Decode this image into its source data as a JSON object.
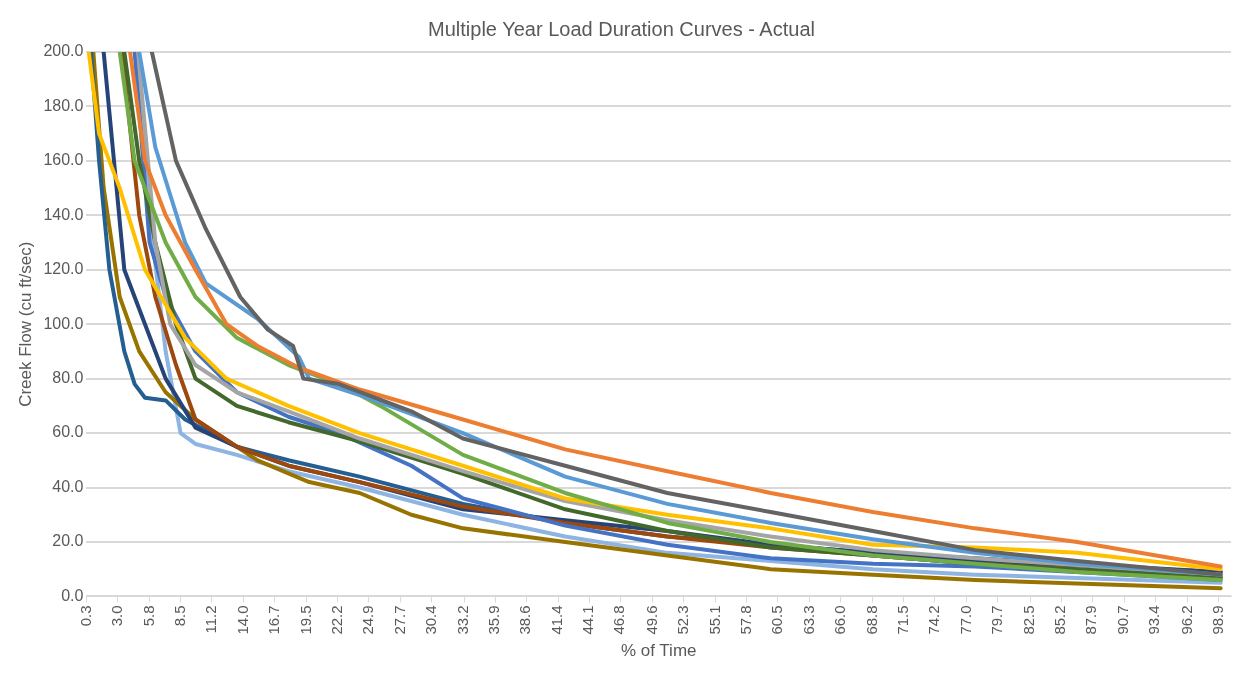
{
  "chart_data": {
    "type": "line",
    "title": "Multiple Year Load Duration Curves - Actual",
    "xlabel": "% of Time",
    "ylabel": "Creek Flow (cu ft/sec)",
    "xlim": [
      0.3,
      100
    ],
    "xticks": [
      0.3,
      {
        "value": 3,
        "label": "3.0"
      },
      5.8,
      8.5,
      11.2,
      {
        "value": 14,
        "label": "14.0"
      },
      16.7,
      19.5,
      22.2,
      24.9,
      27.7,
      30.4,
      33.2,
      35.9,
      38.6,
      41.4,
      44.1,
      46.8,
      49.6,
      52.3,
      55.1,
      57.8,
      60.5,
      63.3,
      {
        "value": 66,
        "label": "66.0"
      },
      68.8,
      71.5,
      74.2,
      {
        "value": 77,
        "label": "77.0"
      },
      79.7,
      82.5,
      85.2,
      87.9,
      90.7,
      93.4,
      96.2,
      98.9
    ],
    "ylim": [
      0,
      200
    ],
    "yticks": [
      {
        "value": 0,
        "label": "0.0"
      },
      {
        "value": 20,
        "label": "20.0"
      },
      {
        "value": 40,
        "label": "40.0"
      },
      {
        "value": 60,
        "label": "60.0"
      },
      {
        "value": 80,
        "label": "80.0"
      },
      {
        "value": 100,
        "label": "100.0"
      },
      {
        "value": 120,
        "label": "120.0"
      },
      {
        "value": 140,
        "label": "140.0"
      },
      {
        "value": 160,
        "label": "160.0"
      },
      {
        "value": 180,
        "label": "180.0"
      },
      {
        "value": 200,
        "label": "200.0"
      }
    ],
    "grid": "y",
    "legend": false,
    "marker": "none",
    "line_style": "solid",
    "series": [
      {
        "color": "#636363",
        "x": [
          6.0,
          8.1,
          10.7,
          13.7,
          16.1,
          18.3,
          19.2,
          22.3,
          28.6,
          33.1,
          42,
          50.9,
          59.9,
          68.8,
          77.7,
          86.6,
          99.1
        ],
        "values": [
          200,
          160,
          135,
          110,
          98,
          92,
          80,
          78,
          68,
          58,
          48,
          38,
          31,
          24,
          17,
          13,
          8
        ]
      },
      {
        "color": "#ed7d31",
        "x": [
          4.1,
          5.4,
          7.2,
          9.8,
          12.5,
          15.2,
          18.8,
          24.1,
          33.1,
          42,
          50.9,
          59.9,
          68.8,
          77.7,
          86.6,
          99.1
        ],
        "values": [
          200,
          160,
          140,
          120,
          100,
          92,
          84,
          76,
          65,
          54,
          46,
          38,
          31,
          25,
          20,
          11
        ]
      },
      {
        "color": "#5b9bd5",
        "x": [
          4.9,
          6.3,
          8.9,
          10.7,
          15.2,
          18.8,
          19.7,
          24.1,
          33.1,
          42,
          50.9,
          59.9,
          68.8,
          77.7,
          86.6,
          99.1
        ],
        "values": [
          200,
          165,
          130,
          115,
          102,
          88,
          80,
          74,
          60,
          44,
          34,
          27,
          21,
          16,
          12,
          8
        ]
      },
      {
        "color": "#70ad47",
        "x": [
          3.2,
          4.5,
          7.2,
          9.8,
          13.4,
          17.9,
          22.3,
          25.9,
          33.1,
          42,
          50.9,
          59.9,
          68.8,
          77.7,
          86.6,
          99.1
        ],
        "values": [
          200,
          160,
          130,
          110,
          95,
          85,
          78,
          70,
          52,
          38,
          27,
          20,
          15,
          12,
          9,
          6
        ]
      },
      {
        "color": "#ffc000",
        "x": [
          0.5,
          1.4,
          3.2,
          5.4,
          8.9,
          12.5,
          17.9,
          24.1,
          33.1,
          42,
          50.9,
          59.9,
          68.8,
          77.7,
          86.6,
          99.1
        ],
        "values": [
          200,
          170,
          150,
          120,
          95,
          80,
          70,
          60,
          48,
          36,
          30,
          25,
          19,
          18,
          16,
          10
        ]
      },
      {
        "color": "#a5a5a5",
        "x": [
          4.8,
          6.3,
          7.6,
          9.8,
          13.4,
          17.9,
          24.1,
          33.1,
          42,
          50.9,
          59.9,
          68.8,
          77.7,
          99.1
        ],
        "values": [
          200,
          130,
          100,
          85,
          75,
          68,
          58,
          46,
          35,
          28,
          22,
          17,
          14,
          8
        ]
      },
      {
        "color": "#43682b",
        "x": [
          3.6,
          4.9,
          6.3,
          8.1,
          9.8,
          13.4,
          17.9,
          24.1,
          33.1,
          42,
          50.9,
          59.9,
          68.8,
          77.7,
          99.1
        ],
        "values": [
          200,
          160,
          130,
          100,
          80,
          70,
          64,
          57,
          45,
          32,
          24,
          18,
          15,
          12,
          7
        ]
      },
      {
        "color": "#4472c4",
        "x": [
          4.5,
          5.8,
          7.2,
          9.8,
          13.4,
          17.9,
          22.3,
          28.6,
          33.1,
          42,
          50.9,
          59.9,
          68.8,
          77.7,
          99.1
        ],
        "values": [
          200,
          130,
          110,
          90,
          75,
          66,
          60,
          48,
          36,
          26,
          19,
          14,
          12,
          11,
          6
        ]
      },
      {
        "color": "#9e480e",
        "x": [
          3.4,
          4.9,
          6.3,
          8.1,
          9.8,
          13.4,
          17.9,
          24.1,
          33.1,
          42,
          50.9,
          59.9,
          68.8,
          77.7,
          99.1
        ],
        "values": [
          200,
          140,
          110,
          85,
          65,
          55,
          48,
          42,
          33,
          27,
          22,
          18,
          15,
          12,
          7
        ]
      },
      {
        "color": "#264478",
        "x": [
          1.8,
          2.7,
          3.6,
          5.4,
          7.2,
          9.8,
          13.4,
          17.9,
          24.1,
          33.1,
          42,
          50.9,
          59.9,
          68.8,
          77.7,
          99.1
        ],
        "values": [
          200,
          160,
          120,
          100,
          80,
          62,
          55,
          48,
          42,
          32,
          28,
          24,
          19,
          16,
          13,
          9
        ]
      },
      {
        "color": "#255e91",
        "x": [
          0.7,
          1.4,
          2.3,
          3.6,
          4.5,
          5.4,
          7.2,
          8.9,
          13.4,
          17.9,
          24.1,
          33.1,
          42,
          50.9,
          59.9,
          68.8,
          77.7,
          99.1
        ],
        "values": [
          200,
          160,
          120,
          90,
          78,
          73,
          72,
          65,
          55,
          50,
          44,
          34,
          27,
          22,
          19,
          16,
          14,
          9
        ]
      },
      {
        "color": "#997300",
        "x": [
          0.9,
          1.8,
          3.2,
          4.9,
          7.2,
          9.8,
          15.2,
          19.7,
          24.1,
          28.6,
          33.1,
          42,
          50.9,
          59.9,
          68.8,
          77.7,
          99.1
        ],
        "values": [
          200,
          150,
          110,
          90,
          75,
          65,
          50,
          42,
          38,
          30,
          25,
          20,
          15,
          10,
          8,
          6,
          3
        ]
      },
      {
        "color": "#8db4e2",
        "x": [
          4.8,
          5.8,
          7.2,
          8.5,
          9.8,
          13.4,
          17.9,
          24.1,
          33.1,
          42,
          50.9,
          59.9,
          68.8,
          77.7,
          99.1
        ],
        "values": [
          200,
          140,
          90,
          60,
          56,
          52,
          46,
          40,
          30,
          22,
          16,
          13,
          10,
          8,
          5
        ]
      }
    ]
  }
}
